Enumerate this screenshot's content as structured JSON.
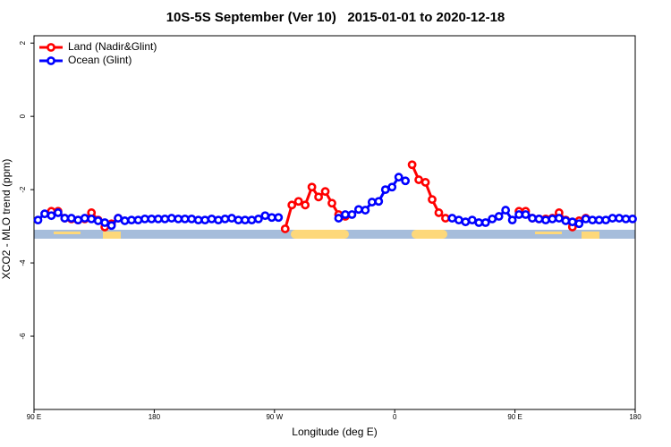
{
  "chart_data": {
    "type": "line",
    "title": "10S-5S September (Ver 10)   2015-01-01 to 2020-12-18",
    "xlabel": "Longitude (deg E)",
    "ylabel": "XCO2 - MLO trend (ppm)",
    "xlim": [
      90,
      540
    ],
    "ylim": [
      -8,
      2.2
    ],
    "xticks": [
      {
        "value": 90,
        "label": "90 E"
      },
      180,
      {
        "value": 270,
        "label": "90 W"
      },
      {
        "value": 360,
        "label": "0"
      },
      {
        "value": 450,
        "label": "90 E"
      },
      {
        "value": 540,
        "label": "180"
      }
    ],
    "yticks": [
      -6,
      -4,
      -2,
      0,
      2
    ],
    "legend": "upper left",
    "series": [
      {
        "name": "Land (Nadir&Glint)",
        "color": "#ff0000",
        "x": [
          103,
          108,
          113,
          118,
          123,
          128,
          133,
          138,
          143,
          148,
          153,
          158,
          278,
          283,
          288,
          293,
          298,
          303,
          308,
          313,
          318,
          323,
          328,
          373,
          378,
          383,
          388,
          393,
          398,
          403,
          453,
          458,
          463,
          468,
          473,
          478,
          483,
          488,
          493,
          498,
          503
        ],
        "values": [
          -2.59,
          -2.59,
          -2.78,
          -2.8,
          -2.83,
          -2.8,
          -2.63,
          -2.83,
          -3.02,
          -2.93,
          -2.78,
          null,
          -3.07,
          -2.42,
          -2.32,
          -2.42,
          -1.93,
          -2.2,
          -2.05,
          -2.37,
          -2.68,
          -2.73,
          null,
          -1.32,
          -1.73,
          -1.8,
          -2.27,
          -2.63,
          -2.78,
          null,
          -2.59,
          -2.59,
          -2.78,
          -2.8,
          -2.8,
          -2.78,
          -2.63,
          -2.83,
          -3.02,
          -2.85,
          -2.78
        ]
      },
      {
        "name": "Ocean (Glint)",
        "color": "#0000ff",
        "x": [
          93,
          98,
          103,
          108,
          113,
          118,
          123,
          128,
          133,
          138,
          143,
          148,
          153,
          158,
          163,
          168,
          173,
          178,
          183,
          188,
          193,
          198,
          203,
          208,
          213,
          218,
          223,
          228,
          233,
          238,
          243,
          248,
          253,
          258,
          263,
          268,
          273,
          278,
          283,
          288,
          293,
          298,
          303,
          308,
          313,
          318,
          323,
          328,
          333,
          338,
          343,
          348,
          353,
          358,
          363,
          368,
          373,
          378,
          383,
          388,
          393,
          398,
          403,
          408,
          413,
          418,
          423,
          428,
          433,
          438,
          443,
          448,
          453,
          458,
          463,
          468,
          473,
          478,
          483,
          488,
          493,
          498,
          503,
          508,
          513,
          518,
          523,
          528,
          533,
          538
        ],
        "values": [
          -2.83,
          -2.66,
          -2.71,
          -2.63,
          -2.78,
          -2.78,
          -2.83,
          -2.78,
          -2.8,
          -2.85,
          -2.9,
          -2.98,
          -2.78,
          -2.85,
          -2.83,
          -2.83,
          -2.8,
          -2.8,
          -2.8,
          -2.8,
          -2.78,
          -2.8,
          -2.8,
          -2.8,
          -2.83,
          -2.83,
          -2.8,
          -2.83,
          -2.8,
          -2.78,
          -2.83,
          -2.83,
          -2.83,
          -2.8,
          -2.71,
          -2.76,
          -2.76,
          null,
          null,
          null,
          null,
          null,
          null,
          null,
          null,
          -2.78,
          -2.68,
          -2.68,
          -2.54,
          -2.56,
          -2.34,
          -2.32,
          -2.0,
          -1.93,
          -1.66,
          -1.76,
          null,
          null,
          null,
          null,
          null,
          null,
          -2.78,
          -2.83,
          -2.88,
          -2.83,
          -2.9,
          -2.9,
          -2.8,
          -2.73,
          -2.56,
          -2.83,
          -2.68,
          -2.68,
          -2.78,
          -2.8,
          -2.83,
          -2.8,
          -2.78,
          -2.85,
          -2.88,
          -2.93,
          -2.8,
          -2.83,
          -2.83,
          -2.83,
          -2.78,
          -2.78,
          -2.8,
          -2.8
        ]
      }
    ]
  }
}
